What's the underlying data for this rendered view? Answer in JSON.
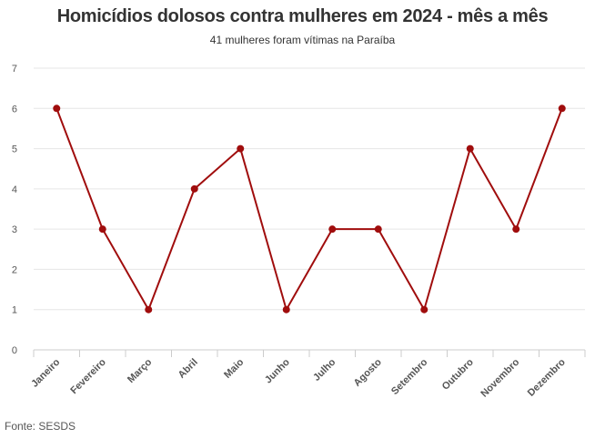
{
  "title": "Homicídios dolosos contra mulheres em 2024 - mês a mês",
  "subtitle": "41 mulheres foram vítimas na Paraíba",
  "source": "Fonte: SESDS",
  "colors": {
    "line": "#a00d0d",
    "grid": "#e6e6e6",
    "axis": "#cccccc"
  },
  "chart_data": {
    "type": "line",
    "categories": [
      "Janeiro",
      "Fevereiro",
      "Março",
      "Abril",
      "Maio",
      "Junho",
      "Julho",
      "Agosto",
      "Setembro",
      "Outubro",
      "Novembro",
      "Dezembro"
    ],
    "series": [
      {
        "values": [
          6,
          3,
          1,
          4,
          5,
          1,
          3,
          3,
          1,
          5,
          3,
          6
        ]
      }
    ],
    "ylim": [
      0,
      7
    ],
    "yticks": [
      0,
      1,
      2,
      3,
      4,
      5,
      6,
      7
    ],
    "grid": true,
    "legend": "none"
  }
}
